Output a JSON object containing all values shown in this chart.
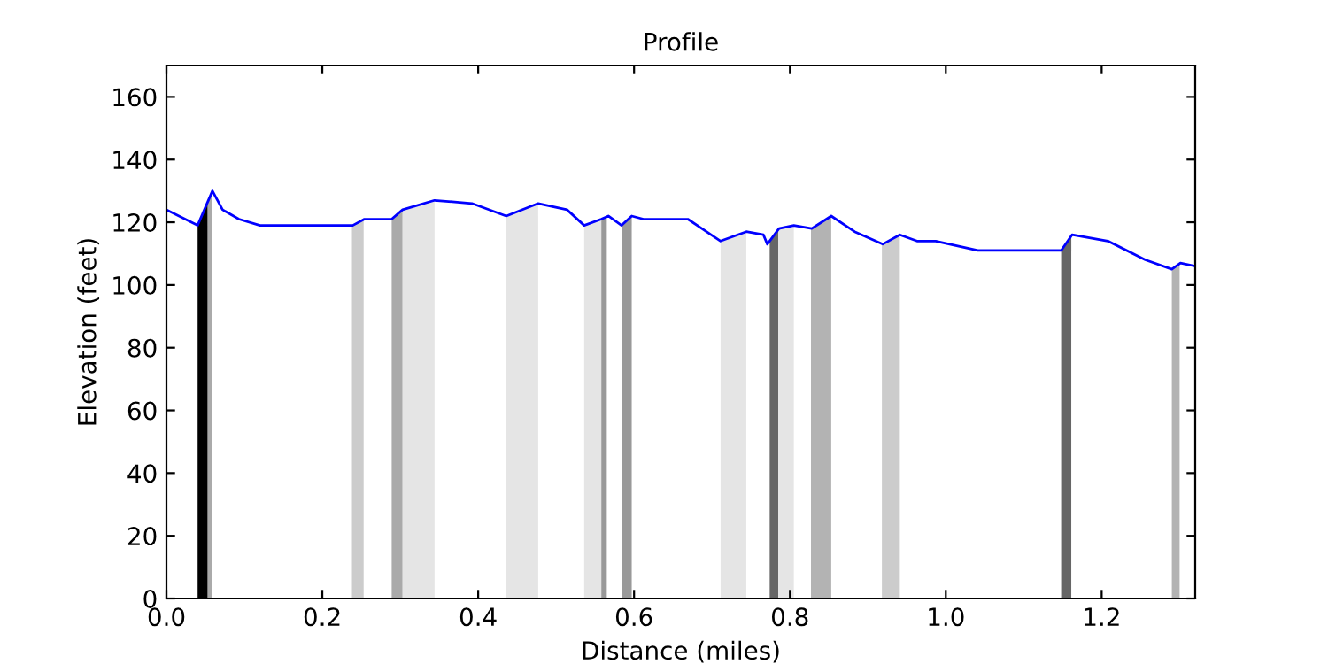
{
  "chart_data": {
    "type": "line",
    "title": "Profile",
    "xlabel": "Distance (miles)",
    "ylabel": "Elevation (feet)",
    "xlim": [
      0,
      1.32
    ],
    "ylim": [
      0,
      170
    ],
    "xticks": [
      {
        "value": 0,
        "label": "0.0"
      },
      0.2,
      0.4,
      0.6,
      0.8,
      {
        "value": 1.0,
        "label": "1.0"
      },
      1.2
    ],
    "yticks": [
      0,
      20,
      40,
      60,
      80,
      100,
      120,
      140,
      160
    ],
    "grid": false,
    "legend": false,
    "series": [
      {
        "color": "#0000ff",
        "x": [
          0,
          0.04,
          0.059,
          0.072,
          0.093,
          0.12,
          0.239,
          0.254,
          0.289,
          0.303,
          0.344,
          0.392,
          0.436,
          0.477,
          0.514,
          0.536,
          0.558,
          0.567,
          0.584,
          0.597,
          0.612,
          0.669,
          0.711,
          0.744,
          0.766,
          0.771,
          0.786,
          0.805,
          0.828,
          0.853,
          0.883,
          0.919,
          0.941,
          0.963,
          0.987,
          1.041,
          1.148,
          1.162,
          1.208,
          1.256,
          1.29,
          1.301,
          1.32
        ],
        "values": [
          124,
          119,
          130,
          124,
          121,
          119,
          119,
          121,
          121,
          124,
          127,
          126,
          122,
          126,
          124,
          119,
          121,
          122,
          119,
          122,
          121,
          121,
          114,
          117,
          116,
          113,
          118,
          119,
          118,
          122,
          117,
          113,
          116,
          114,
          114,
          111,
          111,
          116,
          114,
          108,
          105,
          107,
          106
        ]
      }
    ],
    "bands": [
      {
        "axis": "x",
        "from": 0.04,
        "to": 0.053,
        "color": "#000000"
      },
      {
        "axis": "x",
        "from": 0.053,
        "to": 0.059,
        "color": "#aaaaaa"
      },
      {
        "axis": "x",
        "from": 0.238,
        "to": 0.253,
        "color": "#cccccc"
      },
      {
        "axis": "x",
        "from": 0.289,
        "to": 0.303,
        "color": "#aaaaaa"
      },
      {
        "axis": "x",
        "from": 0.303,
        "to": 0.344,
        "color": "#e5e5e5"
      },
      {
        "axis": "x",
        "from": 0.436,
        "to": 0.477,
        "color": "#e5e5e5"
      },
      {
        "axis": "x",
        "from": 0.536,
        "to": 0.558,
        "color": "#e5e5e5"
      },
      {
        "axis": "x",
        "from": 0.558,
        "to": 0.565,
        "color": "#999999"
      },
      {
        "axis": "x",
        "from": 0.584,
        "to": 0.597,
        "color": "#999999"
      },
      {
        "axis": "x",
        "from": 0.711,
        "to": 0.744,
        "color": "#e5e5e5"
      },
      {
        "axis": "x",
        "from": 0.774,
        "to": 0.785,
        "color": "#666666"
      },
      {
        "axis": "x",
        "from": 0.785,
        "to": 0.805,
        "color": "#e5e5e5"
      },
      {
        "axis": "x",
        "from": 0.827,
        "to": 0.853,
        "color": "#b3b3b3"
      },
      {
        "axis": "x",
        "from": 0.918,
        "to": 0.941,
        "color": "#cccccc"
      },
      {
        "axis": "x",
        "from": 1.148,
        "to": 1.161,
        "color": "#666666"
      },
      {
        "axis": "x",
        "from": 1.29,
        "to": 1.3,
        "color": "#b3b3b3"
      }
    ]
  }
}
